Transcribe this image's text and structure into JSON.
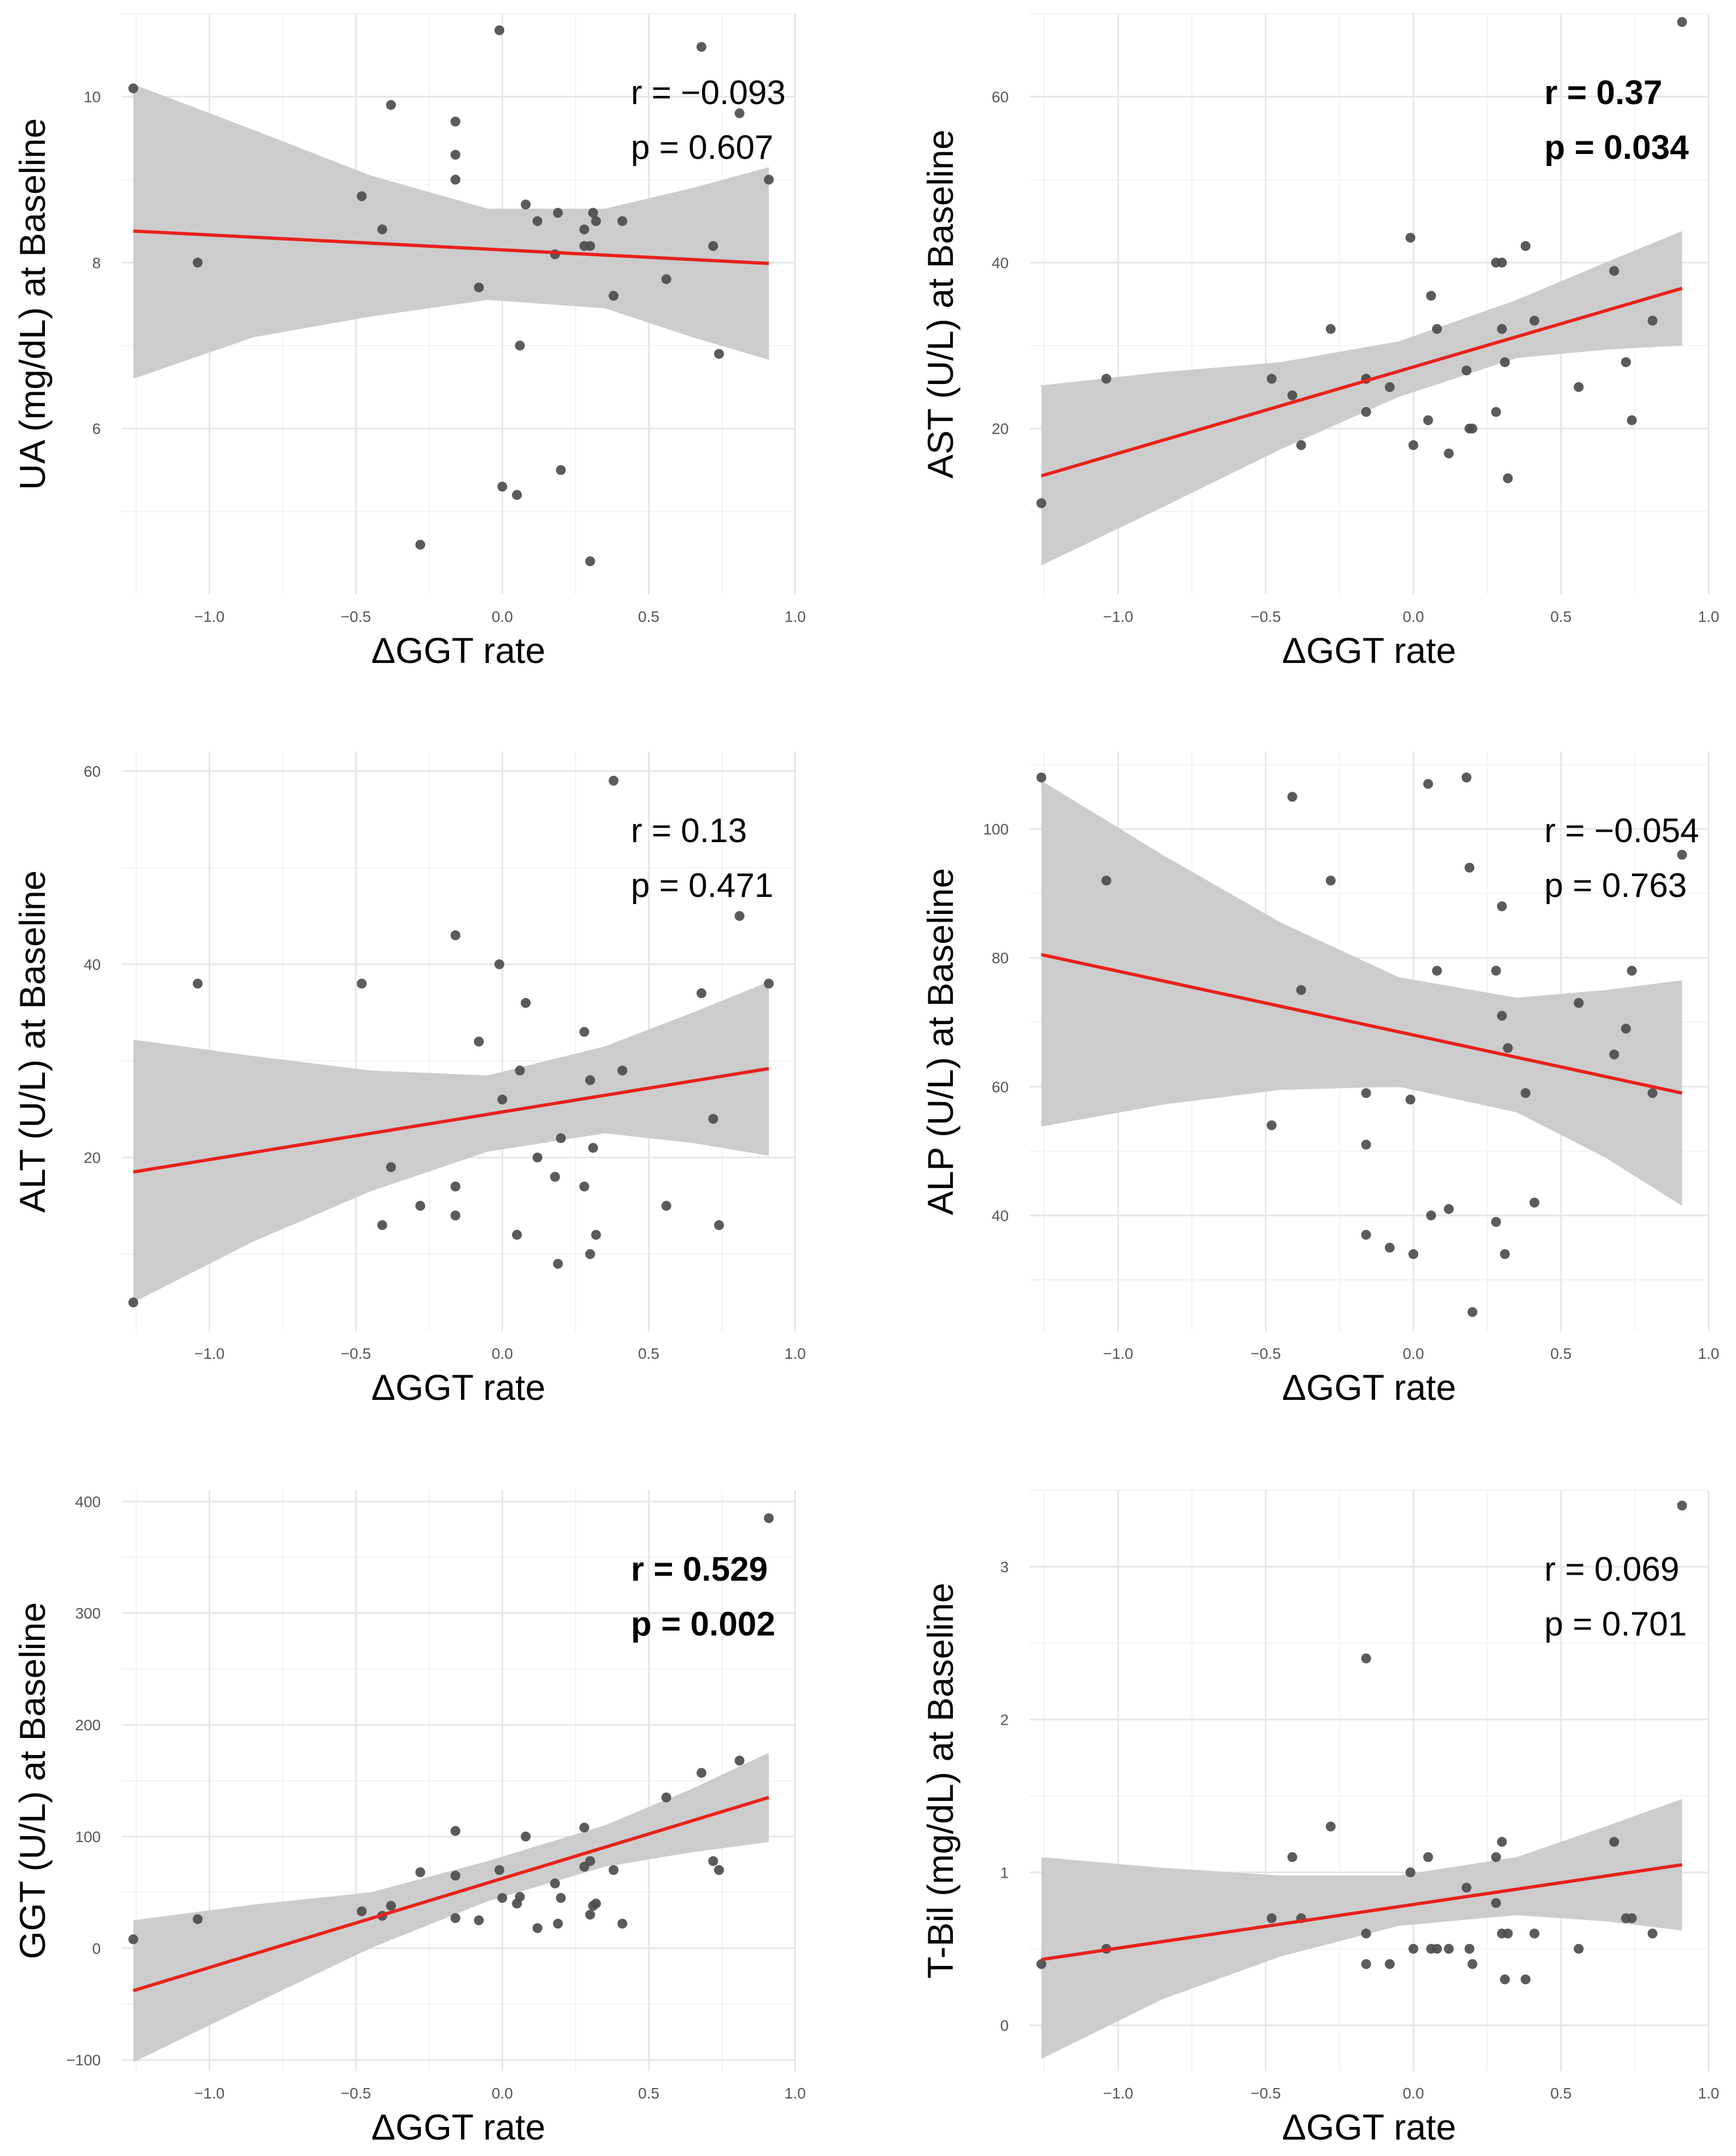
{
  "chart_data": [
    {
      "type": "scatter",
      "panel": "top-left",
      "xlabel": "ΔGGT rate",
      "ylabel": "UA (mg/dL) at Baseline",
      "xlim": [
        -1.3,
        1.0
      ],
      "ylim": [
        4.0,
        11.0
      ],
      "xticks": [
        -1.0,
        -0.5,
        0.0,
        0.5,
        1.0
      ],
      "xtick_labels": [
        "−1.0",
        "−0.5",
        "0.0",
        "0.5",
        "1.0"
      ],
      "yticks": [
        6,
        8,
        10
      ],
      "ytick_labels": [
        "6",
        "8",
        "10"
      ],
      "stats": {
        "r": "r = −0.093",
        "p": "p = 0.607",
        "bold": false
      },
      "fit": {
        "x0": -1.26,
        "y0": 8.38,
        "x1": 0.91,
        "y1": 7.99
      },
      "band": {
        "x": [
          -1.26,
          -0.85,
          -0.45,
          -0.05,
          0.35,
          0.65,
          0.91
        ],
        "lower": [
          6.6,
          7.1,
          7.35,
          7.55,
          7.45,
          7.1,
          6.83
        ],
        "upper": [
          10.15,
          9.6,
          9.05,
          8.65,
          8.65,
          8.9,
          9.15
        ]
      },
      "points": [
        [
          -1.26,
          10.1
        ],
        [
          -1.04,
          8.0
        ],
        [
          -0.48,
          8.8
        ],
        [
          -0.41,
          8.4
        ],
        [
          -0.38,
          9.9
        ],
        [
          -0.28,
          4.6
        ],
        [
          -0.16,
          9.7
        ],
        [
          -0.16,
          9.3
        ],
        [
          -0.16,
          9.0
        ],
        [
          -0.08,
          7.7
        ],
        [
          -0.01,
          10.8
        ],
        [
          0.0,
          5.3
        ],
        [
          0.05,
          5.2
        ],
        [
          0.06,
          7.0
        ],
        [
          0.08,
          8.7
        ],
        [
          0.12,
          8.5
        ],
        [
          0.18,
          8.1
        ],
        [
          0.19,
          8.6
        ],
        [
          0.2,
          5.5
        ],
        [
          0.28,
          8.4
        ],
        [
          0.28,
          8.2
        ],
        [
          0.3,
          8.2
        ],
        [
          0.3,
          4.4
        ],
        [
          0.31,
          8.6
        ],
        [
          0.32,
          8.5
        ],
        [
          0.38,
          7.6
        ],
        [
          0.41,
          8.5
        ],
        [
          0.56,
          7.8
        ],
        [
          0.68,
          10.6
        ],
        [
          0.72,
          8.2
        ],
        [
          0.74,
          6.9
        ],
        [
          0.81,
          9.8
        ],
        [
          0.91,
          9.0
        ]
      ]
    },
    {
      "type": "scatter",
      "panel": "top-right",
      "xlabel": "ΔGGT rate",
      "ylabel": "AST (U/L) at Baseline",
      "xlim": [
        -1.3,
        1.0
      ],
      "ylim": [
        0,
        70
      ],
      "xticks": [
        -1.0,
        -0.5,
        0.0,
        0.5,
        1.0
      ],
      "xtick_labels": [
        "−1.0",
        "−0.5",
        "0.0",
        "0.5",
        "1.0"
      ],
      "yticks": [
        20,
        40,
        60
      ],
      "ytick_labels": [
        "20",
        "40",
        "60"
      ],
      "stats": {
        "r": "r = 0.37",
        "p": "p = 0.034",
        "bold": true
      },
      "fit": {
        "x0": -1.26,
        "y0": 14.3,
        "x1": 0.91,
        "y1": 36.9
      },
      "band": {
        "x": [
          -1.26,
          -0.85,
          -0.45,
          -0.05,
          0.35,
          0.65,
          0.91
        ],
        "lower": [
          3.5,
          10.5,
          17.5,
          23.8,
          28.5,
          29.5,
          30.0
        ],
        "upper": [
          25.2,
          26.8,
          28.0,
          30.5,
          35.5,
          40.0,
          43.8
        ]
      },
      "points": [
        [
          -1.26,
          11
        ],
        [
          -1.04,
          26
        ],
        [
          -0.48,
          26
        ],
        [
          -0.41,
          24
        ],
        [
          -0.38,
          18
        ],
        [
          -0.28,
          32
        ],
        [
          -0.16,
          26
        ],
        [
          -0.16,
          26
        ],
        [
          -0.16,
          22
        ],
        [
          -0.08,
          25
        ],
        [
          -0.01,
          43
        ],
        [
          0.0,
          18
        ],
        [
          0.05,
          21
        ],
        [
          0.06,
          36
        ],
        [
          0.08,
          32
        ],
        [
          0.12,
          17
        ],
        [
          0.18,
          27
        ],
        [
          0.19,
          20
        ],
        [
          0.2,
          20
        ],
        [
          0.28,
          40
        ],
        [
          0.28,
          22
        ],
        [
          0.3,
          40
        ],
        [
          0.3,
          32
        ],
        [
          0.31,
          28
        ],
        [
          0.32,
          14
        ],
        [
          0.38,
          42
        ],
        [
          0.41,
          33
        ],
        [
          0.56,
          25
        ],
        [
          0.68,
          39
        ],
        [
          0.72,
          28
        ],
        [
          0.74,
          21
        ],
        [
          0.81,
          33
        ],
        [
          0.91,
          69
        ]
      ]
    },
    {
      "type": "scatter",
      "panel": "middle-left",
      "xlabel": "ΔGGT rate",
      "ylabel": "ALT (U/L) at Baseline",
      "xlim": [
        -1.3,
        1.0
      ],
      "ylim": [
        2,
        62
      ],
      "xticks": [
        -1.0,
        -0.5,
        0.0,
        0.5,
        1.0
      ],
      "xtick_labels": [
        "−1.0",
        "−0.5",
        "0.0",
        "0.5",
        "1.0"
      ],
      "yticks": [
        20,
        40,
        60
      ],
      "ytick_labels": [
        "20",
        "40",
        "60"
      ],
      "stats": {
        "r": "r = 0.13",
        "p": "p = 0.471",
        "bold": false
      },
      "fit": {
        "x0": -1.26,
        "y0": 18.5,
        "x1": 0.91,
        "y1": 29.2
      },
      "band": {
        "x": [
          -1.26,
          -0.85,
          -0.45,
          -0.05,
          0.35,
          0.65,
          0.91
        ],
        "lower": [
          5.0,
          11.3,
          16.5,
          20.6,
          22.5,
          21.5,
          20.2
        ],
        "upper": [
          32.2,
          30.5,
          29.0,
          28.5,
          31.5,
          35.0,
          38.2
        ]
      },
      "points": [
        [
          -1.26,
          5
        ],
        [
          -1.04,
          38
        ],
        [
          -0.48,
          38
        ],
        [
          -0.41,
          13
        ],
        [
          -0.38,
          19
        ],
        [
          -0.28,
          15
        ],
        [
          -0.16,
          43
        ],
        [
          -0.16,
          17
        ],
        [
          -0.16,
          14
        ],
        [
          -0.08,
          32
        ],
        [
          -0.01,
          40
        ],
        [
          0.0,
          26
        ],
        [
          0.05,
          12
        ],
        [
          0.06,
          29
        ],
        [
          0.08,
          36
        ],
        [
          0.12,
          20
        ],
        [
          0.18,
          18
        ],
        [
          0.19,
          9
        ],
        [
          0.2,
          22
        ],
        [
          0.28,
          33
        ],
        [
          0.28,
          17
        ],
        [
          0.3,
          28
        ],
        [
          0.3,
          10
        ],
        [
          0.31,
          21
        ],
        [
          0.32,
          12
        ],
        [
          0.38,
          59
        ],
        [
          0.41,
          29
        ],
        [
          0.56,
          15
        ],
        [
          0.68,
          37
        ],
        [
          0.72,
          24
        ],
        [
          0.74,
          13
        ],
        [
          0.81,
          45
        ],
        [
          0.91,
          38
        ]
      ]
    },
    {
      "type": "scatter",
      "panel": "middle-right",
      "xlabel": "ΔGGT rate",
      "ylabel": "ALP (U/L) at Baseline",
      "xlim": [
        -1.3,
        1.0
      ],
      "ylim": [
        22,
        112
      ],
      "xticks": [
        -1.0,
        -0.5,
        0.0,
        0.5,
        1.0
      ],
      "xtick_labels": [
        "−1.0",
        "−0.5",
        "0.0",
        "0.5",
        "1.0"
      ],
      "yticks": [
        40,
        60,
        80,
        100
      ],
      "ytick_labels": [
        "40",
        "60",
        "80",
        "100"
      ],
      "stats": {
        "r": "r = −0.054",
        "p": "p = 0.763",
        "bold": false
      },
      "fit": {
        "x0": -1.26,
        "y0": 80.5,
        "x1": 0.91,
        "y1": 59.0
      },
      "band": {
        "x": [
          -1.26,
          -0.85,
          -0.45,
          -0.05,
          0.35,
          0.65,
          0.91
        ],
        "lower": [
          53.8,
          57.2,
          59.5,
          60.0,
          56.0,
          49.0,
          41.5
        ],
        "upper": [
          107.5,
          96.0,
          85.5,
          77.0,
          73.8,
          75.0,
          76.5
        ]
      },
      "points": [
        [
          -1.26,
          108
        ],
        [
          -1.04,
          92
        ],
        [
          -0.48,
          54
        ],
        [
          -0.41,
          105
        ],
        [
          -0.38,
          75
        ],
        [
          -0.28,
          92
        ],
        [
          -0.16,
          59
        ],
        [
          -0.16,
          51
        ],
        [
          -0.16,
          37
        ],
        [
          -0.08,
          35
        ],
        [
          -0.01,
          58
        ],
        [
          0.0,
          34
        ],
        [
          0.05,
          107
        ],
        [
          0.06,
          40
        ],
        [
          0.08,
          78
        ],
        [
          0.12,
          41
        ],
        [
          0.18,
          108
        ],
        [
          0.19,
          94
        ],
        [
          0.2,
          25
        ],
        [
          0.28,
          78
        ],
        [
          0.28,
          39
        ],
        [
          0.3,
          71
        ],
        [
          0.3,
          88
        ],
        [
          0.31,
          34
        ],
        [
          0.32,
          66
        ],
        [
          0.38,
          59
        ],
        [
          0.41,
          42
        ],
        [
          0.56,
          73
        ],
        [
          0.68,
          65
        ],
        [
          0.72,
          69
        ],
        [
          0.74,
          78
        ],
        [
          0.81,
          59
        ],
        [
          0.91,
          96
        ]
      ]
    },
    {
      "type": "scatter",
      "panel": "bottom-left",
      "xlabel": "ΔGGT rate",
      "ylabel": "GGT (U/L) at Baseline",
      "xlim": [
        -1.3,
        1.0
      ],
      "ylim": [
        -110,
        410
      ],
      "xticks": [
        -1.0,
        -0.5,
        0.0,
        0.5,
        1.0
      ],
      "xtick_labels": [
        "−1.0",
        "−0.5",
        "0.0",
        "0.5",
        "1.0"
      ],
      "yticks": [
        -100,
        0,
        100,
        200,
        300,
        400
      ],
      "ytick_labels": [
        "−100",
        "0",
        "100",
        "200",
        "300",
        "400"
      ],
      "stats": {
        "r": "r = 0.529",
        "p": "p = 0.002",
        "bold": true
      },
      "fit": {
        "x0": -1.26,
        "y0": -38,
        "x1": 0.91,
        "y1": 135
      },
      "band": {
        "x": [
          -1.26,
          -0.85,
          -0.45,
          -0.05,
          0.35,
          0.65,
          0.91
        ],
        "lower": [
          -102,
          -50,
          0,
          42,
          73,
          86,
          95
        ],
        "upper": [
          25,
          39,
          50,
          78,
          110,
          143,
          175
        ]
      },
      "points": [
        [
          -1.26,
          8
        ],
        [
          -1.04,
          26
        ],
        [
          -0.48,
          33
        ],
        [
          -0.41,
          29
        ],
        [
          -0.38,
          38
        ],
        [
          -0.28,
          68
        ],
        [
          -0.16,
          105
        ],
        [
          -0.16,
          65
        ],
        [
          -0.16,
          27
        ],
        [
          -0.08,
          25
        ],
        [
          -0.01,
          70
        ],
        [
          0.0,
          45
        ],
        [
          0.05,
          40
        ],
        [
          0.06,
          46
        ],
        [
          0.08,
          100
        ],
        [
          0.12,
          18
        ],
        [
          0.18,
          58
        ],
        [
          0.19,
          22
        ],
        [
          0.2,
          45
        ],
        [
          0.28,
          108
        ],
        [
          0.28,
          73
        ],
        [
          0.3,
          30
        ],
        [
          0.3,
          78
        ],
        [
          0.31,
          38
        ],
        [
          0.32,
          40
        ],
        [
          0.38,
          70
        ],
        [
          0.41,
          22
        ],
        [
          0.56,
          135
        ],
        [
          0.68,
          157
        ],
        [
          0.72,
          78
        ],
        [
          0.74,
          70
        ],
        [
          0.81,
          168
        ],
        [
          0.91,
          385
        ]
      ]
    },
    {
      "type": "scatter",
      "panel": "bottom-right",
      "xlabel": "ΔGGT rate",
      "ylabel": "T-Bil (mg/dL) at Baseline",
      "xlim": [
        -1.3,
        1.0
      ],
      "ylim": [
        -0.3,
        3.5
      ],
      "xticks": [
        -1.0,
        -0.5,
        0.0,
        0.5,
        1.0
      ],
      "xtick_labels": [
        "−1.0",
        "−0.5",
        "0.0",
        "0.5",
        "1.0"
      ],
      "yticks": [
        0,
        1,
        2,
        3
      ],
      "ytick_labels": [
        "0",
        "1",
        "2",
        "3"
      ],
      "stats": {
        "r": "r = 0.069",
        "p": "p = 0.701",
        "bold": false
      },
      "fit": {
        "x0": -1.26,
        "y0": 0.43,
        "x1": 0.91,
        "y1": 1.05
      },
      "band": {
        "x": [
          -1.26,
          -0.85,
          -0.45,
          -0.05,
          0.35,
          0.65,
          0.91
        ],
        "lower": [
          -0.22,
          0.17,
          0.45,
          0.65,
          0.72,
          0.68,
          0.62
        ],
        "upper": [
          1.1,
          1.03,
          0.98,
          0.98,
          1.1,
          1.3,
          1.48
        ]
      },
      "points": [
        [
          -1.26,
          0.4
        ],
        [
          -1.04,
          0.5
        ],
        [
          -0.48,
          0.7
        ],
        [
          -0.41,
          1.1
        ],
        [
          -0.38,
          0.7
        ],
        [
          -0.28,
          1.3
        ],
        [
          -0.16,
          2.4
        ],
        [
          -0.16,
          0.6
        ],
        [
          -0.16,
          0.4
        ],
        [
          -0.08,
          0.4
        ],
        [
          -0.01,
          1.0
        ],
        [
          0.0,
          0.5
        ],
        [
          0.05,
          1.1
        ],
        [
          0.06,
          0.5
        ],
        [
          0.08,
          0.5
        ],
        [
          0.12,
          0.5
        ],
        [
          0.18,
          0.9
        ],
        [
          0.19,
          0.5
        ],
        [
          0.2,
          0.4
        ],
        [
          0.28,
          1.1
        ],
        [
          0.28,
          0.8
        ],
        [
          0.3,
          1.2
        ],
        [
          0.3,
          0.6
        ],
        [
          0.31,
          0.3
        ],
        [
          0.32,
          0.6
        ],
        [
          0.38,
          0.3
        ],
        [
          0.41,
          0.6
        ],
        [
          0.56,
          0.5
        ],
        [
          0.68,
          1.2
        ],
        [
          0.72,
          0.7
        ],
        [
          0.74,
          0.7
        ],
        [
          0.81,
          0.6
        ],
        [
          0.91,
          3.4
        ]
      ]
    }
  ]
}
